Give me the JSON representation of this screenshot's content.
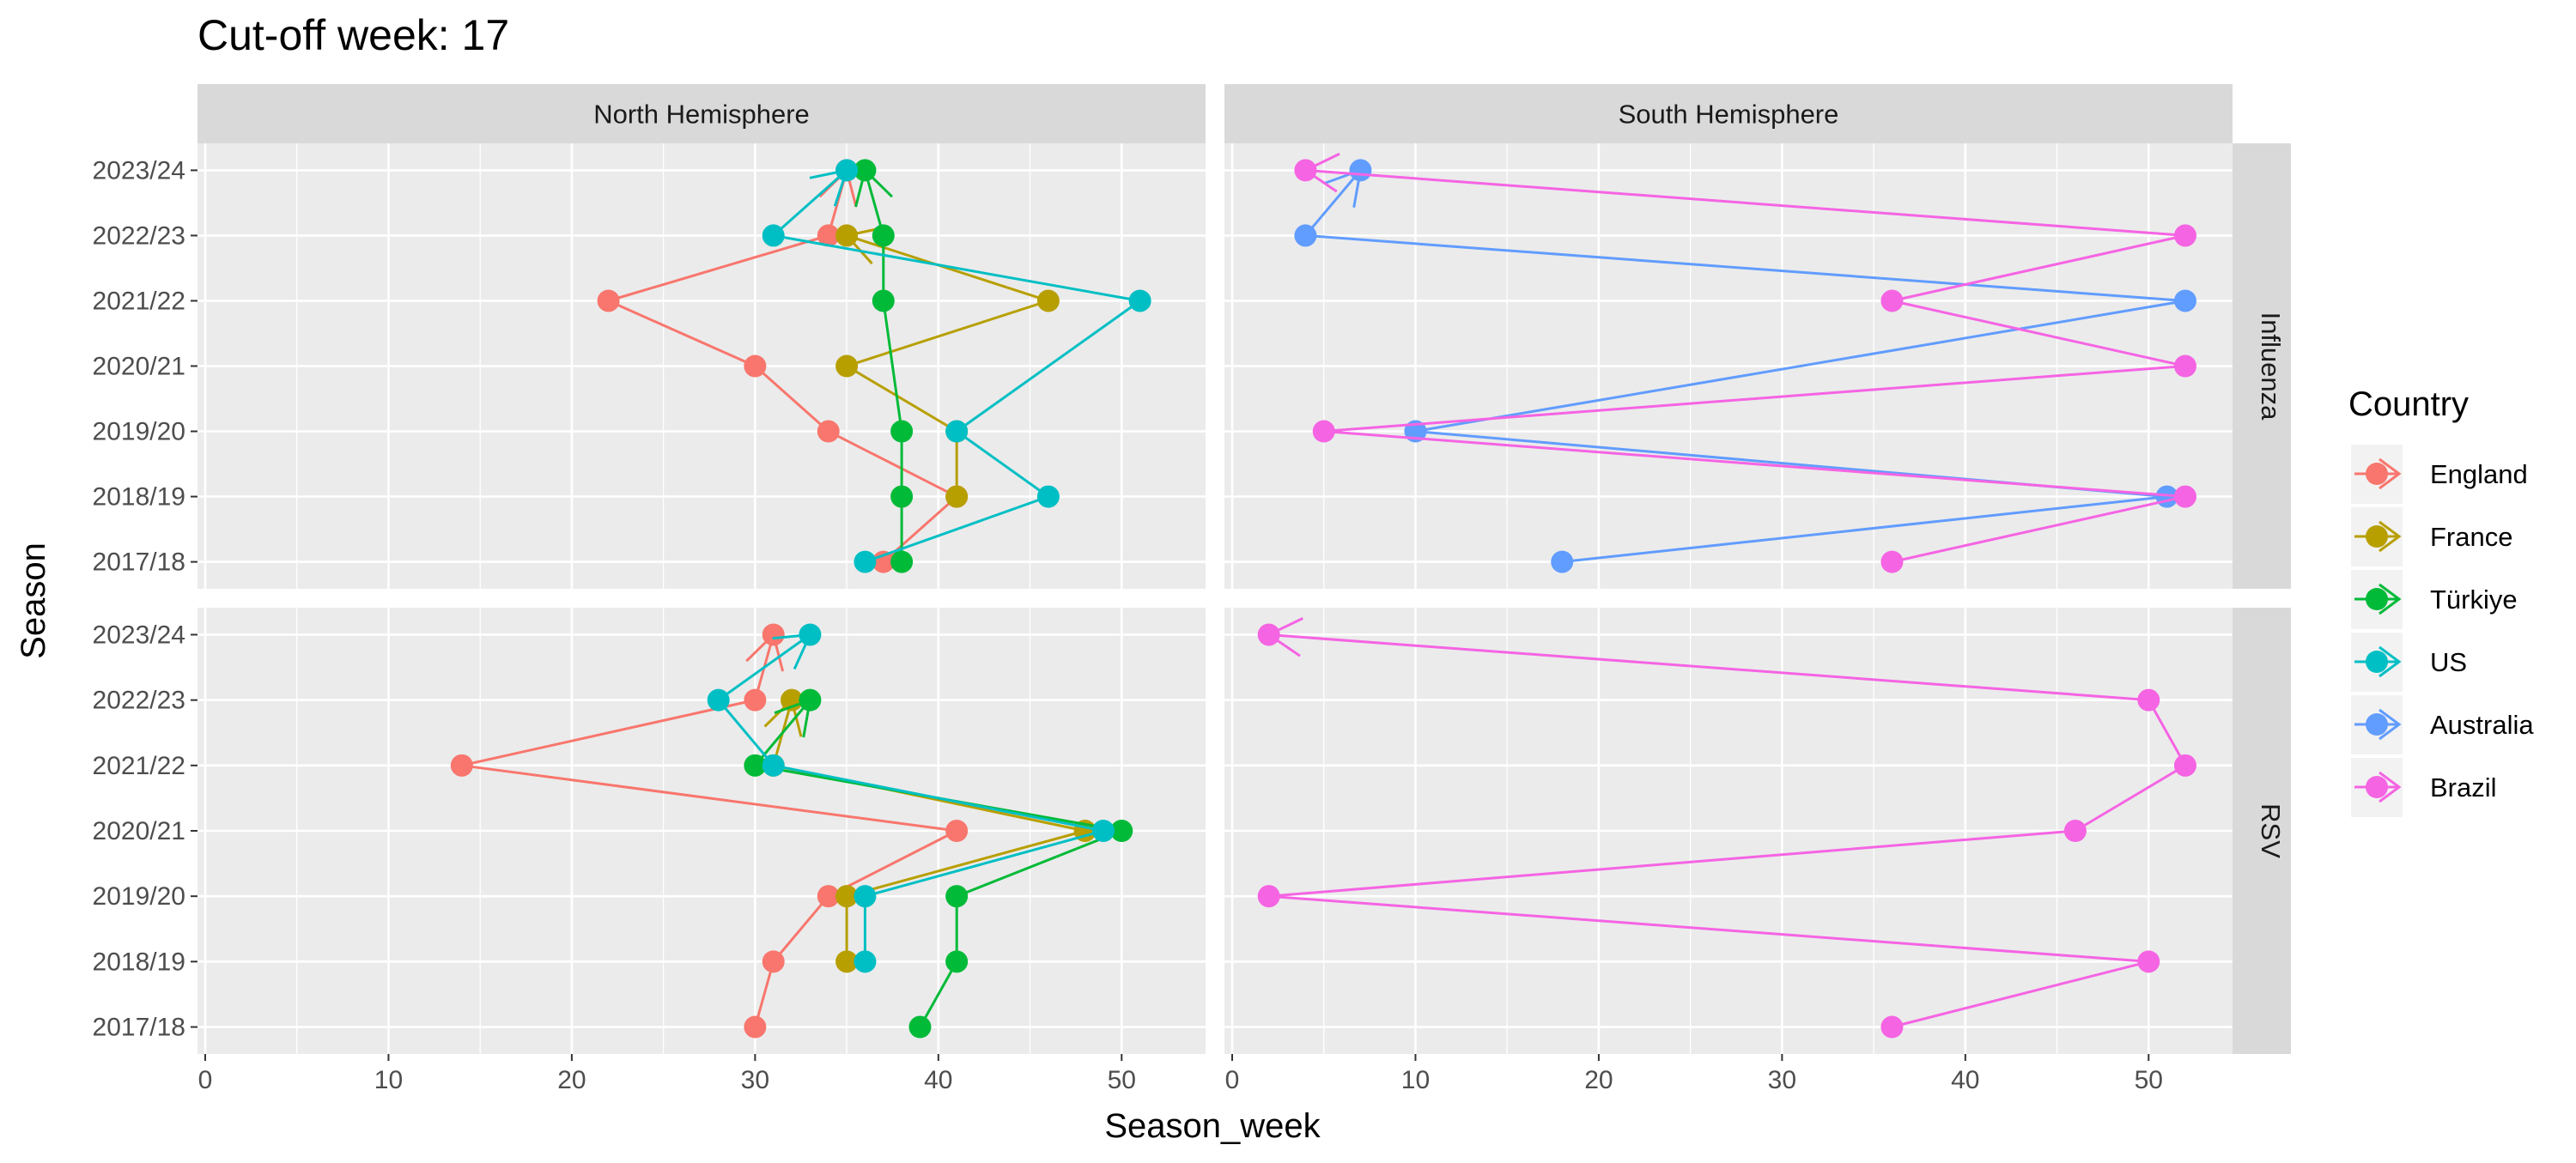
{
  "chart_data": {
    "type": "line",
    "title": "Cut-off week: 17",
    "xlabel": "Season_week",
    "ylabel": "Season",
    "xlim": [
      0,
      55
    ],
    "x_ticks": [
      0,
      10,
      20,
      30,
      40,
      50
    ],
    "seasons": [
      "2017/18",
      "2018/19",
      "2019/20",
      "2020/21",
      "2021/22",
      "2022/23",
      "2023/24"
    ],
    "columns": [
      "North Hemisphere",
      "South Hemisphere"
    ],
    "rows": [
      "Influenza",
      "RSV"
    ],
    "grid": true,
    "legend": {
      "title": "Country",
      "placement": "right"
    },
    "series": [
      {
        "name": "England",
        "color": "#F8766D"
      },
      {
        "name": "France",
        "color": "#B79F00"
      },
      {
        "name": "Türkiye",
        "color": "#00BA38"
      },
      {
        "name": "US",
        "color": "#00BFC4"
      },
      {
        "name": "Australia",
        "color": "#619CFF"
      },
      {
        "name": "Brazil",
        "color": "#F564E3"
      }
    ],
    "panels": [
      {
        "column": "North Hemisphere",
        "row": "Influenza",
        "lines": {
          "England": [
            37,
            41,
            34,
            30,
            22,
            34,
            35
          ],
          "France": [
            null,
            41,
            41,
            35,
            46,
            35,
            null
          ],
          "Türkiye": [
            38,
            38,
            38,
            null,
            37,
            37,
            36
          ],
          "US": [
            36,
            46,
            41,
            null,
            51,
            31,
            35
          ]
        }
      },
      {
        "column": "South Hemisphere",
        "row": "Influenza",
        "lines": {
          "Australia": [
            18,
            51,
            10,
            null,
            52,
            4,
            7
          ],
          "Brazil": [
            36,
            52,
            5,
            52,
            36,
            52,
            4
          ]
        }
      },
      {
        "column": "North Hemisphere",
        "row": "RSV",
        "lines": {
          "England": [
            30,
            31,
            34,
            41,
            14,
            30,
            31
          ],
          "France": [
            null,
            35,
            35,
            48,
            31,
            32,
            null
          ],
          "Türkiye": [
            39,
            41,
            41,
            50,
            30,
            33,
            null
          ],
          "US": [
            null,
            36,
            36,
            49,
            31,
            28,
            33
          ]
        }
      },
      {
        "column": "South Hemisphere",
        "row": "RSV",
        "lines": {
          "Brazil": [
            36,
            50,
            2,
            46,
            52,
            50,
            2
          ]
        }
      }
    ]
  }
}
